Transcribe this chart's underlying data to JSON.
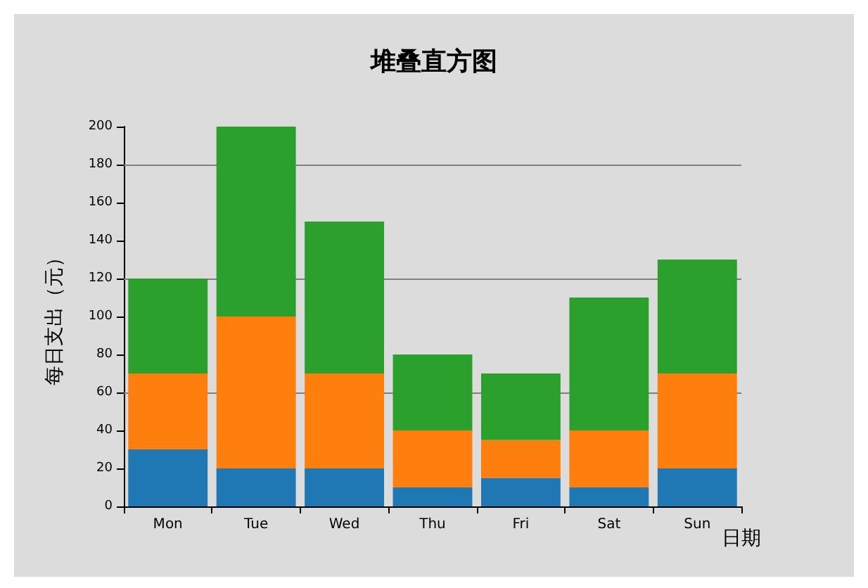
{
  "chart_data": {
    "type": "bar",
    "title": "堆叠直方图",
    "xlabel": "日期",
    "ylabel": "每日支出（元）",
    "stacked": true,
    "categories": [
      "Mon",
      "Tue",
      "Wed",
      "Thu",
      "Fri",
      "Sat",
      "Sun"
    ],
    "series": [
      {
        "color": "#1f77b4",
        "values": [
          30,
          20,
          20,
          10,
          15,
          10,
          20
        ]
      },
      {
        "color": "#ff7f0e",
        "values": [
          40,
          80,
          50,
          30,
          20,
          30,
          50
        ]
      },
      {
        "color": "#2ca02c",
        "values": [
          50,
          100,
          80,
          40,
          35,
          70,
          60
        ]
      }
    ],
    "ylim": [
      0,
      200
    ],
    "yticks": [
      0,
      20,
      40,
      60,
      80,
      100,
      120,
      140,
      160,
      180,
      200
    ],
    "grid": false,
    "ref_lines": [
      {
        "axis": "y",
        "value": 60,
        "color": "#808080"
      },
      {
        "axis": "y",
        "value": 120,
        "color": "#808080"
      },
      {
        "axis": "y",
        "value": 180,
        "color": "#808080"
      }
    ]
  }
}
